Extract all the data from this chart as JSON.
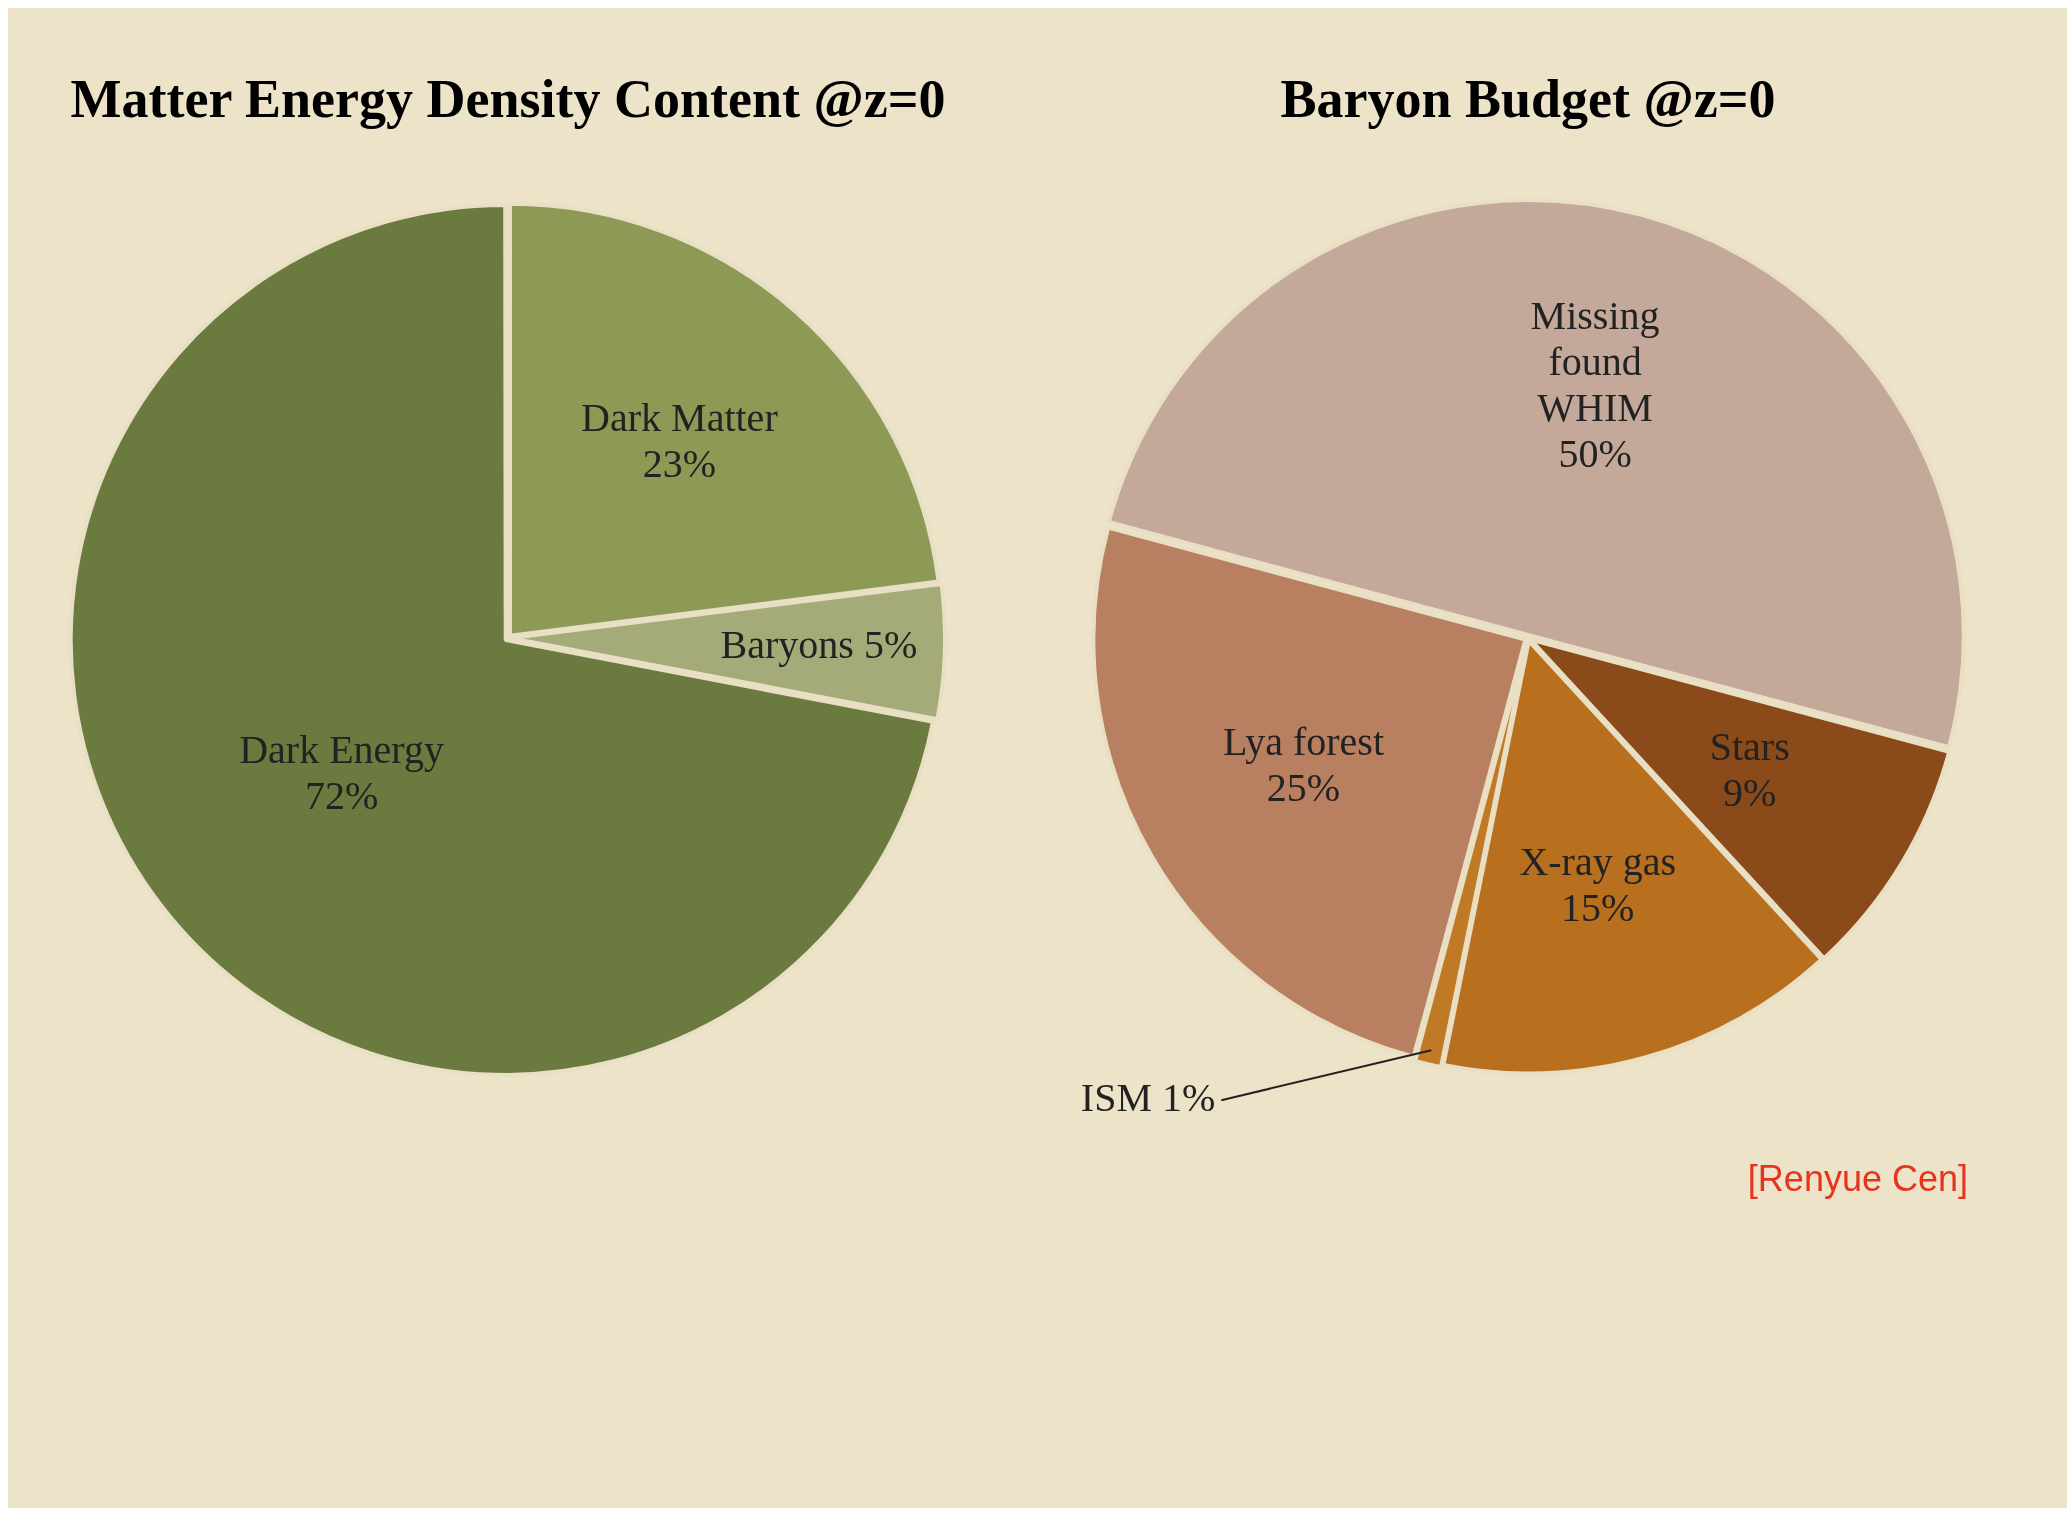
{
  "chart_data": [
    {
      "type": "pie",
      "title": "Matter Energy Density Content @z=0",
      "categories": [
        "Dark Matter",
        "Baryons",
        "Dark Energy"
      ],
      "values": [
        23,
        5,
        72
      ],
      "value_labels": [
        "23%",
        "5%",
        "72%"
      ],
      "colors": [
        "#8c9a55",
        "#a4ab79",
        "#6b7a3e"
      ],
      "legend": false
    },
    {
      "type": "pie",
      "title": "Baryon Budget @z=0",
      "categories": [
        "Missing found WHIM",
        "Stars",
        "X-ray gas",
        "ISM",
        "Lya forest"
      ],
      "values": [
        50,
        9,
        15,
        1,
        25
      ],
      "value_labels": [
        "50%",
        "9%",
        "15%",
        "1%",
        "25%"
      ],
      "colors": [
        "#c4a89a",
        "#8a4a1a",
        "#b8701e",
        "#c07a25",
        "#b88060"
      ],
      "legend": false,
      "annotations": [
        "[Renyue Cen]"
      ]
    }
  ]
}
